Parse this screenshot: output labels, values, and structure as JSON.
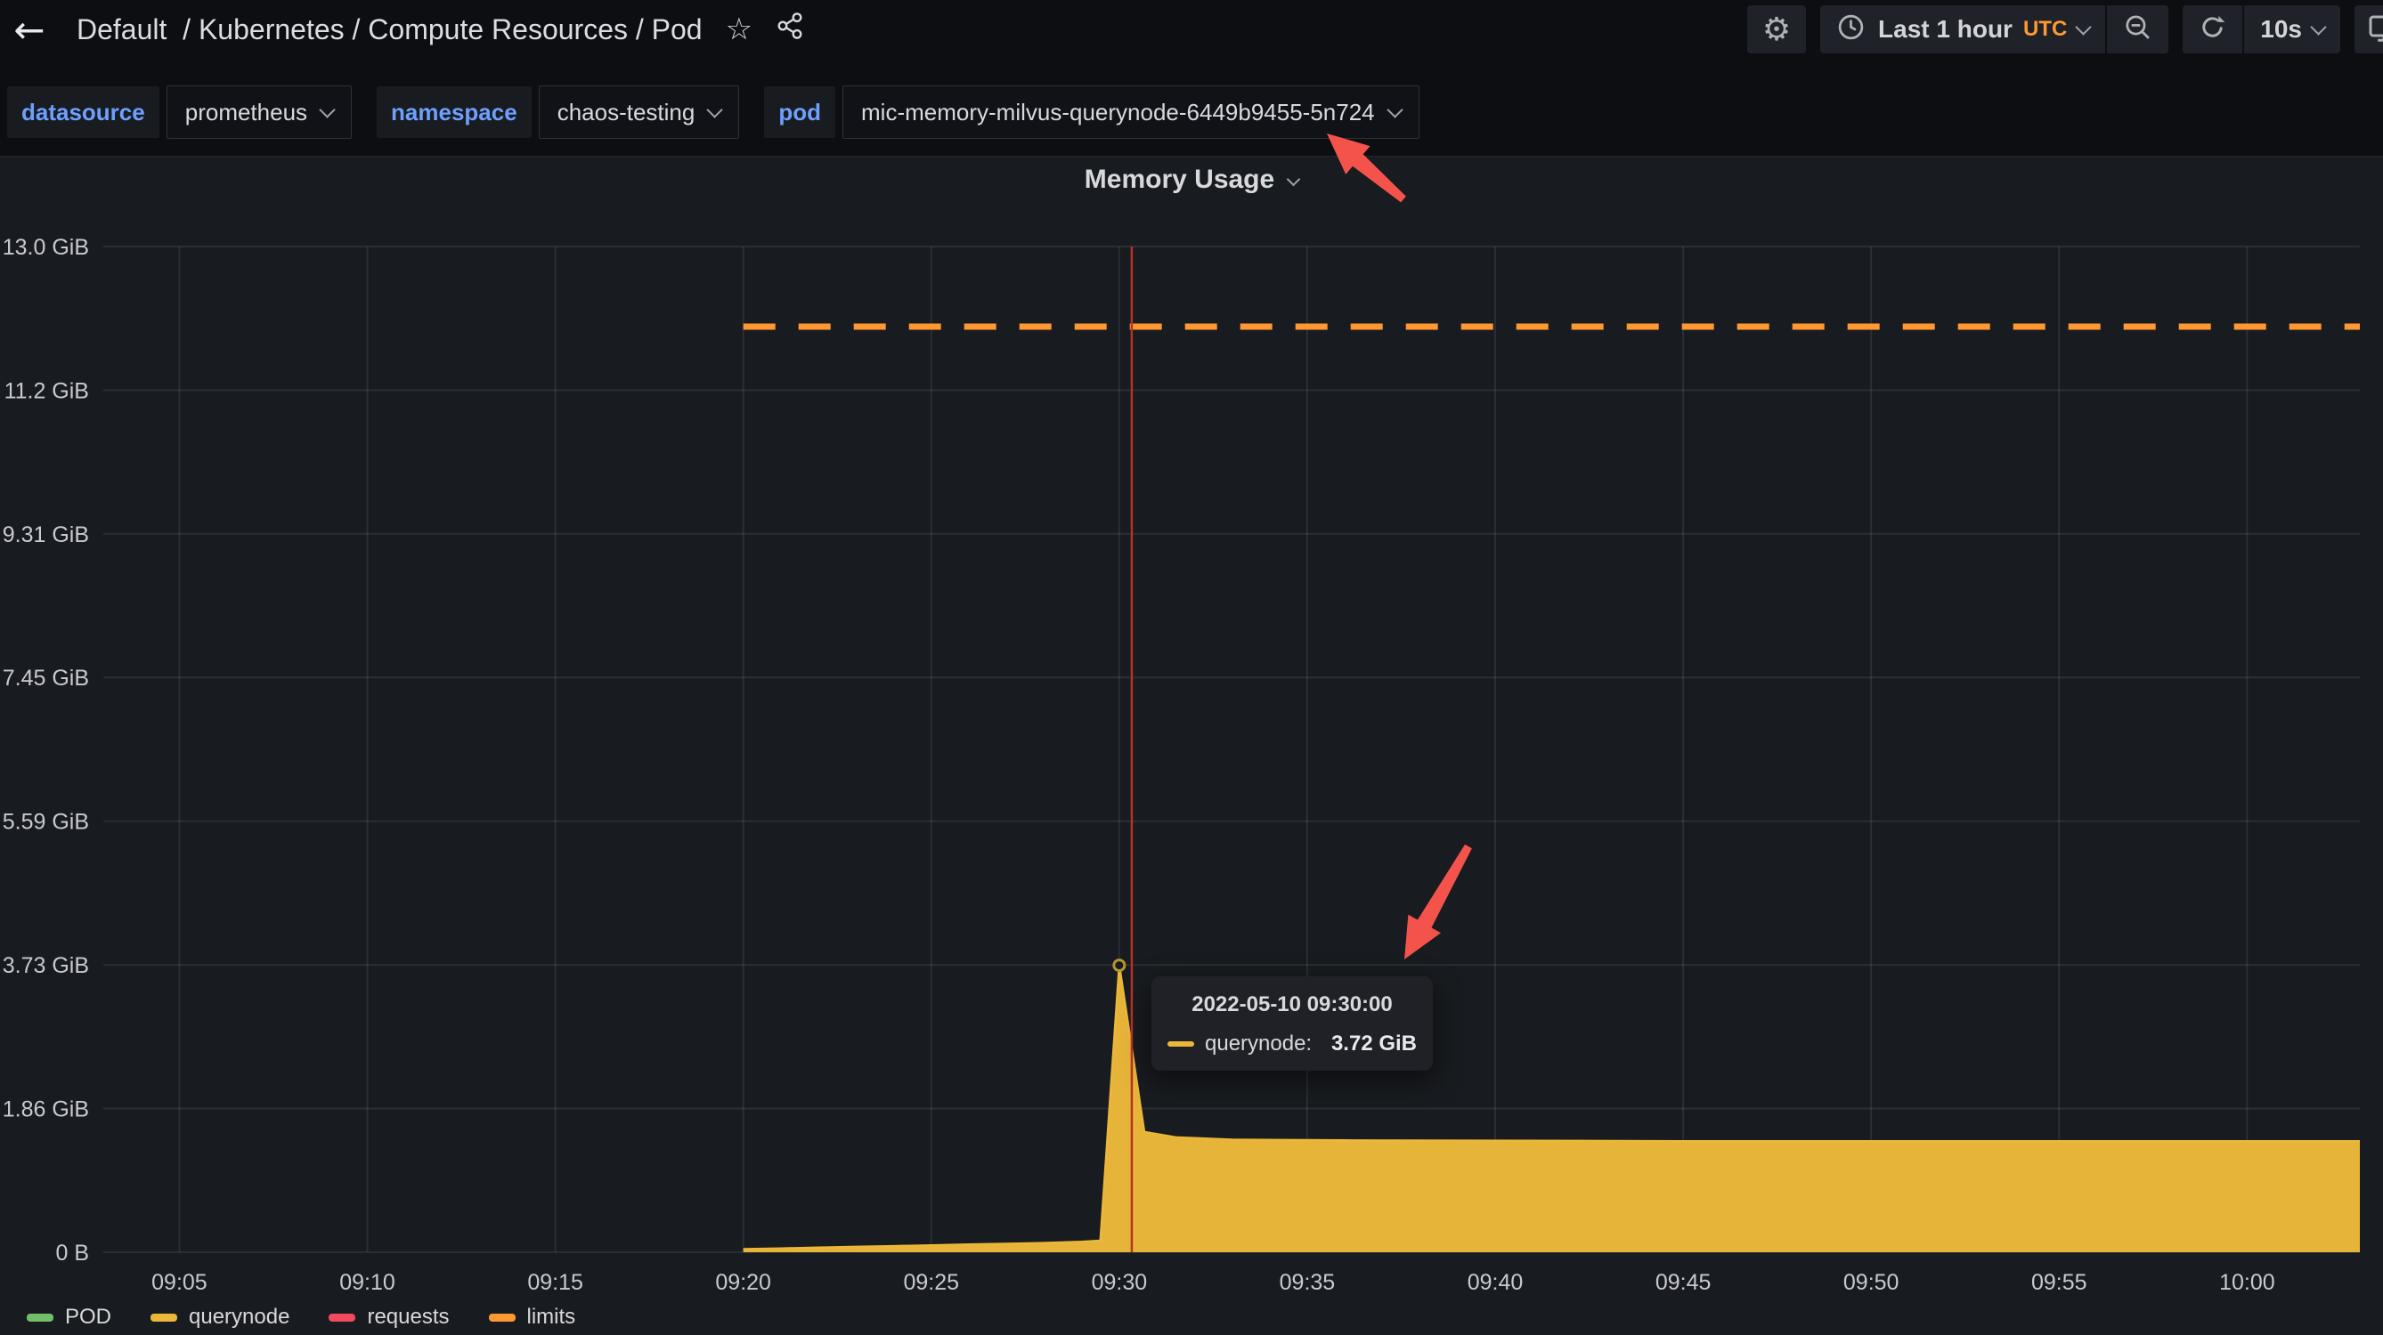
{
  "nav": {
    "back_icon": "←",
    "breadcrumb": {
      "dashboard": "Default",
      "path": "  / Kubernetes / Compute Resources / Pod"
    },
    "star_icon": "☆",
    "share_icon": "share-alt",
    "settings_icon": "⚙",
    "time_picker": {
      "clock_icon": "clock",
      "label": "Last 1 hour",
      "timezone": "UTC"
    },
    "zoom_out_icon": "magnifier-minus",
    "refresh_icon": "sync",
    "refresh_interval": "10s",
    "kiosk_icon": "monitor"
  },
  "variables": [
    {
      "label": "datasource",
      "value": "prometheus"
    },
    {
      "label": "namespace",
      "value": "chaos-testing"
    },
    {
      "label": "pod",
      "value": "mic-memory-milvus-querynode-6449b9455-5n724"
    }
  ],
  "panel": {
    "title": "Memory Usage"
  },
  "tooltip": {
    "date": "2022-05-10 09:30:00",
    "series": "querynode",
    "series_label": "querynode:",
    "value": "3.72 GiB"
  },
  "chart_data": {
    "type": "area",
    "title": "Memory Usage",
    "unit": "GiB",
    "grid": true,
    "legend_position": "bottom-left",
    "x_range": [
      "09:03",
      "10:03"
    ],
    "x_ticks": [
      "09:05",
      "09:10",
      "09:15",
      "09:20",
      "09:25",
      "09:30",
      "09:35",
      "09:40",
      "09:45",
      "09:50",
      "09:55",
      "10:00"
    ],
    "y_max": 13.038,
    "y_ticks": [
      {
        "value": 13.038,
        "label": "13.0 GiB"
      },
      {
        "value": 11.176,
        "label": "11.2 GiB"
      },
      {
        "value": 9.313,
        "label": "9.31 GiB"
      },
      {
        "value": 7.451,
        "label": "7.45 GiB"
      },
      {
        "value": 5.588,
        "label": "5.59 GiB"
      },
      {
        "value": 3.725,
        "label": "3.73 GiB"
      },
      {
        "value": 1.863,
        "label": "1.86 GiB"
      },
      {
        "value": 0,
        "label": "0 B"
      }
    ],
    "series": [
      {
        "name": "POD",
        "color": "#73bf69",
        "style": "line",
        "points": []
      },
      {
        "name": "querynode",
        "color": "#eab839",
        "fill": "#e7b43a",
        "style": "area",
        "points": [
          [
            "09:20",
            0.04
          ],
          [
            "09:21",
            0.05
          ],
          [
            "09:22",
            0.06
          ],
          [
            "09:23",
            0.07
          ],
          [
            "09:24",
            0.08
          ],
          [
            "09:25",
            0.09
          ],
          [
            "09:26",
            0.1
          ],
          [
            "09:27",
            0.11
          ],
          [
            "09:28",
            0.12
          ],
          [
            "09:29",
            0.135
          ],
          [
            "09:29:30",
            0.15
          ],
          [
            "09:30",
            3.72
          ],
          [
            "09:30:40",
            1.56
          ],
          [
            "09:31:30",
            1.49
          ],
          [
            "09:33",
            1.46
          ],
          [
            "09:36",
            1.45
          ],
          [
            "09:45",
            1.44
          ],
          [
            "09:55",
            1.44
          ],
          [
            "10:03",
            1.44
          ]
        ]
      },
      {
        "name": "requests",
        "color": "#f2495c",
        "style": "line",
        "points": []
      },
      {
        "name": "limits",
        "color": "#ff9830",
        "style": "dashed",
        "points": [
          [
            "09:20",
            12.0
          ],
          [
            "10:03",
            12.0
          ]
        ]
      }
    ],
    "highlight_point": {
      "series": "querynode",
      "time": "09:30",
      "value": 3.72
    },
    "crosshair_time": "09:30:20"
  },
  "annotations": {
    "color": "#f4534b",
    "arrows": [
      {
        "name": "arrow-to-pod-variable",
        "tip": [
          1490,
          150
        ],
        "tail": [
          1576,
          224
        ]
      },
      {
        "name": "arrow-to-tooltip",
        "tip": [
          1577,
          1078
        ],
        "tail": [
          1649,
          951
        ]
      }
    ]
  },
  "colors": {
    "background": "#0d0e12",
    "panel_background": "#181b1f",
    "text": "#d8d9dd",
    "variable_label_blue": "#6e9fff",
    "timezone_orange": "#ff9830",
    "crosshair_red": "#b73127",
    "annotation_red": "#f4534b"
  }
}
